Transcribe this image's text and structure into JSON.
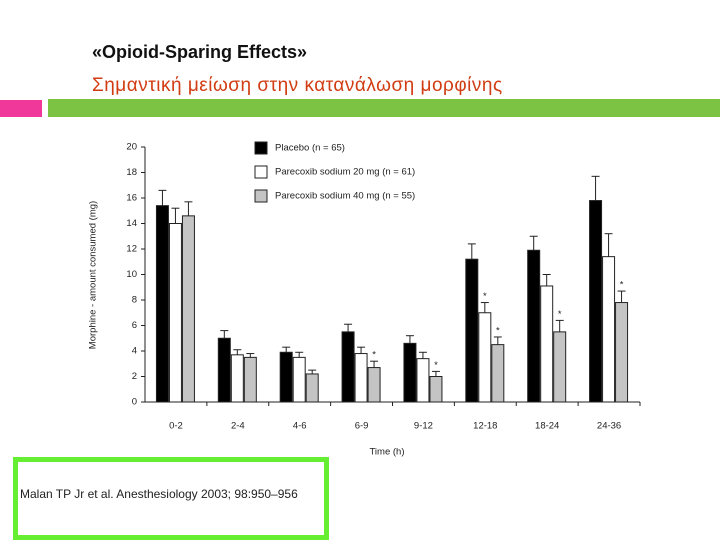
{
  "slide": {
    "title": "«Opioid-Sparing Effects»",
    "subtitle": "Σημαντική μείωση στην κατανάλωση μορφίνης"
  },
  "citation": "Malan TP Jr et al. Anesthesiology 2003; 98:950–956",
  "chart_data": {
    "type": "bar",
    "x_label": "Time (h)",
    "y_label": "Morphine - amount consumed (mg)",
    "categories": [
      "0-2",
      "2-4",
      "4-6",
      "6-9",
      "9-12",
      "12-18",
      "18-24",
      "24-36"
    ],
    "series": [
      {
        "name": "Placebo (n = 65)",
        "color": "#000000",
        "values": [
          15.4,
          5.0,
          3.9,
          5.5,
          4.6,
          11.2,
          11.9,
          15.8
        ],
        "errors": [
          1.2,
          0.6,
          0.4,
          0.6,
          0.6,
          1.2,
          1.1,
          1.9
        ],
        "markers": [
          null,
          null,
          null,
          null,
          null,
          null,
          null,
          null
        ]
      },
      {
        "name": "Parecoxib sodium 20 mg (n = 61)",
        "color": "#ffffff",
        "values": [
          14.0,
          3.7,
          3.5,
          3.8,
          3.4,
          7.0,
          9.1,
          11.4
        ],
        "errors": [
          1.2,
          0.4,
          0.4,
          0.5,
          0.5,
          0.8,
          0.9,
          1.8
        ],
        "markers": [
          null,
          null,
          null,
          null,
          null,
          "*",
          null,
          null
        ]
      },
      {
        "name": "Parecoxib sodium 40 mg (n = 55)",
        "color": "#c4c4c4",
        "values": [
          14.6,
          3.5,
          2.2,
          2.7,
          2.0,
          4.5,
          5.5,
          7.8
        ],
        "errors": [
          1.1,
          0.3,
          0.3,
          0.5,
          0.4,
          0.6,
          0.9,
          0.9
        ],
        "markers": [
          null,
          null,
          null,
          "*",
          "*",
          "*",
          "*",
          "*"
        ]
      }
    ],
    "ylim": [
      0,
      20
    ],
    "yticks": [
      0,
      2,
      4,
      6,
      8,
      10,
      12,
      14,
      16,
      18,
      20
    ]
  }
}
